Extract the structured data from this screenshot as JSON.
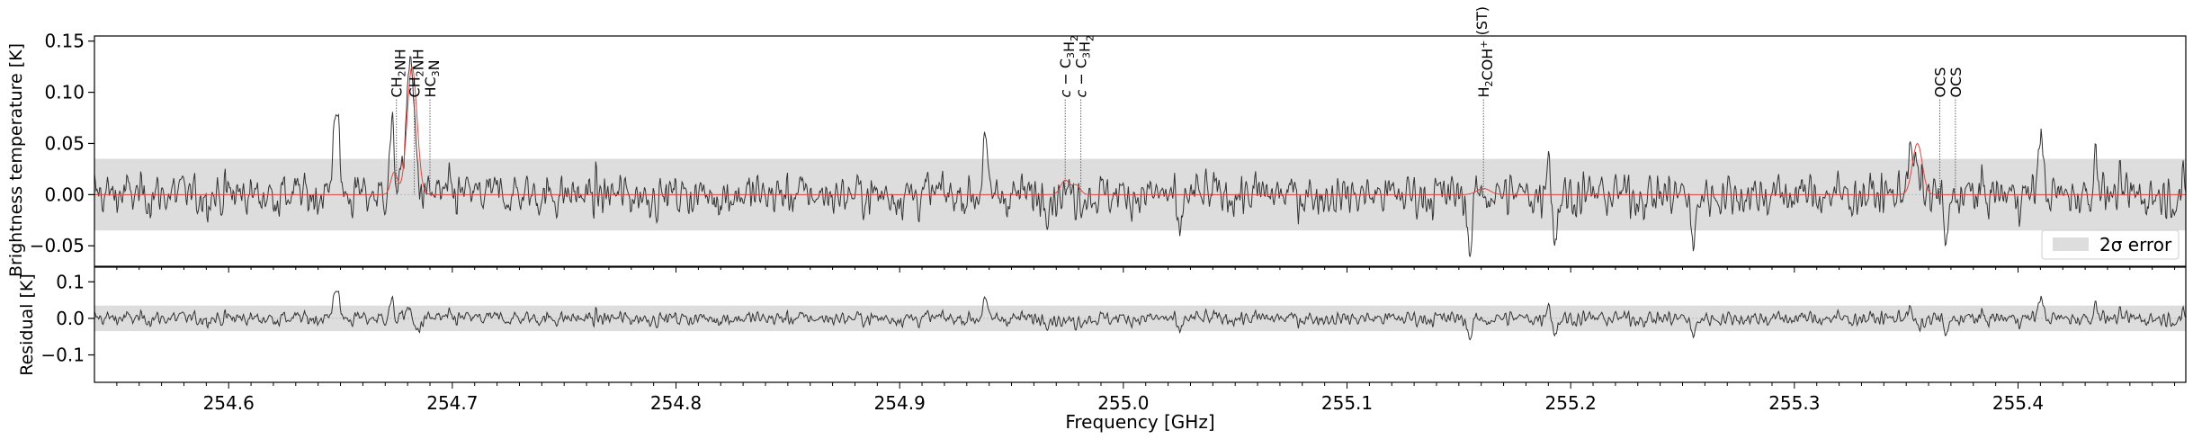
{
  "chart_data": {
    "type": "line",
    "xlabel": "Frequency [GHz]",
    "x_ticks": [
      "254.6",
      "254.7",
      "254.8",
      "254.9",
      "255.0",
      "255.1",
      "255.2",
      "255.3",
      "255.4"
    ],
    "x_tick_values": [
      254.6,
      254.7,
      254.8,
      254.9,
      255.0,
      255.1,
      255.2,
      255.3,
      255.4
    ],
    "xlim": [
      254.54,
      255.475
    ],
    "top_panel": {
      "ylabel": "Brightness temperature [K]",
      "ylim": [
        -0.07,
        0.155
      ],
      "y_ticks": [
        "0.15",
        "0.10",
        "0.05",
        "0.00",
        "−0.05"
      ],
      "y_tick_values": [
        0.15,
        0.1,
        0.05,
        0.0,
        -0.05
      ],
      "error_band": [
        -0.035,
        0.035
      ],
      "legend": {
        "label": "2σ error",
        "placement": "lower-right"
      },
      "series_colors": {
        "observed": "#333333",
        "model": "#e8433f"
      },
      "model_peaks": [
        {
          "x": 254.682,
          "height": 0.125,
          "width": 0.0022
        },
        {
          "x": 254.674,
          "height": 0.022,
          "width": 0.0015
        },
        {
          "x": 254.974,
          "height": 0.014,
          "width": 0.002
        },
        {
          "x": 254.979,
          "height": 0.009,
          "width": 0.0018
        },
        {
          "x": 255.161,
          "height": 0.006,
          "width": 0.003
        },
        {
          "x": 255.355,
          "height": 0.05,
          "width": 0.0022
        }
      ],
      "observed_features": [
        {
          "x": 254.648,
          "height": 0.095,
          "width": 0.0012
        },
        {
          "x": 254.673,
          "height": 0.055,
          "width": 0.0012
        },
        {
          "x": 254.681,
          "height": 0.11,
          "width": 0.0018
        },
        {
          "x": 254.938,
          "height": 0.05,
          "width": 0.001
        },
        {
          "x": 255.025,
          "height": -0.05,
          "width": 0.001
        },
        {
          "x": 255.155,
          "height": -0.055,
          "width": 0.001
        },
        {
          "x": 255.19,
          "height": 0.045,
          "width": 0.001
        },
        {
          "x": 255.193,
          "height": -0.045,
          "width": 0.001
        },
        {
          "x": 255.255,
          "height": -0.055,
          "width": 0.001
        },
        {
          "x": 255.352,
          "height": 0.035,
          "width": 0.002
        },
        {
          "x": 255.368,
          "height": -0.055,
          "width": 0.001
        },
        {
          "x": 255.41,
          "height": 0.065,
          "width": 0.001
        },
        {
          "x": 255.435,
          "height": 0.045,
          "width": 0.001
        }
      ],
      "line_labels": [
        {
          "x": 254.675,
          "parts": [
            [
              "CH",
              ""
            ],
            [
              "2",
              "sub"
            ],
            [
              "NH",
              ""
            ]
          ],
          "top_value": 0.155
        },
        {
          "x": 254.683,
          "parts": [
            [
              "CH",
              ""
            ],
            [
              "2",
              "sub"
            ],
            [
              "NH",
              ""
            ]
          ],
          "top_value": 0.155
        },
        {
          "x": 254.69,
          "parts": [
            [
              "HC",
              ""
            ],
            [
              "3",
              "sub"
            ],
            [
              "N",
              ""
            ]
          ],
          "top_value": 0.155
        },
        {
          "x": 254.974,
          "parts": [
            [
              "c",
              "i"
            ],
            [
              " − C",
              ""
            ],
            [
              "3",
              "sub"
            ],
            [
              "H",
              ""
            ],
            [
              "2",
              "sub"
            ]
          ],
          "top_value": 0.155
        },
        {
          "x": 254.981,
          "parts": [
            [
              "c",
              "i"
            ],
            [
              " − C",
              ""
            ],
            [
              "3",
              "sub"
            ],
            [
              "H",
              ""
            ],
            [
              "2",
              "sub"
            ]
          ],
          "top_value": 0.155
        },
        {
          "x": 255.161,
          "parts": [
            [
              "H",
              ""
            ],
            [
              "2",
              "sub"
            ],
            [
              "COH",
              ""
            ],
            [
              "+",
              "sup"
            ],
            [
              " (ST)",
              ""
            ]
          ],
          "top_value": 0.155
        },
        {
          "x": 255.365,
          "parts": [
            [
              "OCS",
              ""
            ]
          ],
          "top_value": 0.155
        },
        {
          "x": 255.372,
          "parts": [
            [
              "OCS",
              ""
            ]
          ],
          "top_value": 0.155
        }
      ]
    },
    "bottom_panel": {
      "ylabel": "Residual [K]",
      "ylim": [
        -0.175,
        0.14
      ],
      "y_ticks": [
        "0.1",
        "0.0",
        "−0.1"
      ],
      "y_tick_values": [
        0.1,
        0.0,
        -0.1
      ],
      "error_band": [
        -0.035,
        0.035
      ]
    }
  }
}
